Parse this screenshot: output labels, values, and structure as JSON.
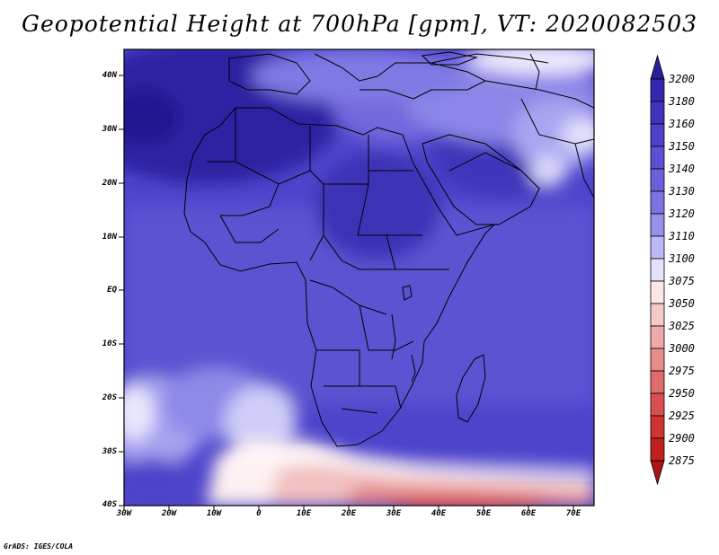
{
  "title": "Geopotential Height at 700hPa [gpm], VT: 2020082503",
  "credit": "GrADS: IGES/COLA",
  "map": {
    "lat_labels": [
      "40N",
      "30N",
      "20N",
      "10N",
      "EQ",
      "10S",
      "20S",
      "30S",
      "40S"
    ],
    "lon_labels": [
      "30W",
      "20W",
      "10W",
      "0",
      "10E",
      "20E",
      "30E",
      "40E",
      "50E",
      "60E",
      "70E"
    ]
  },
  "colorbar": {
    "labels": [
      "3200",
      "3180",
      "3160",
      "3150",
      "3140",
      "3130",
      "3120",
      "3110",
      "3100",
      "3075",
      "3050",
      "3025",
      "3000",
      "2975",
      "2950",
      "2925",
      "2900",
      "2875"
    ],
    "colors": [
      "#2a1f9a",
      "#3628ae",
      "#4233bf",
      "#4e40ca",
      "#5b4fd2",
      "#6a60da",
      "#7c74e2",
      "#9891ec",
      "#bdb9f6",
      "#e3e2fc",
      "#fbe7e7",
      "#f4c9c9",
      "#eeaaaa",
      "#e88b8b",
      "#e06b6b",
      "#d94f4f",
      "#cf3434",
      "#c02222",
      "#ad1414"
    ]
  }
}
